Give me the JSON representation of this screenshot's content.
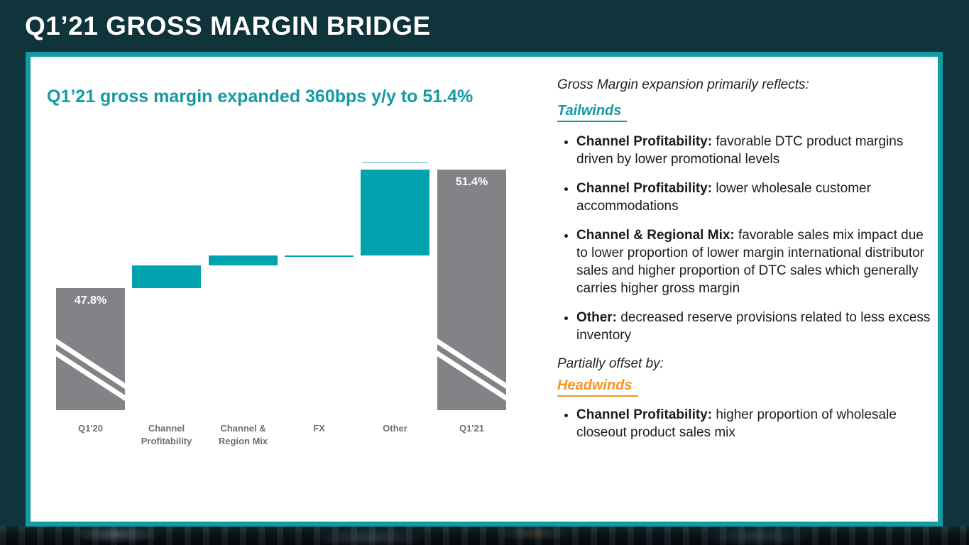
{
  "slide": {
    "title": "Q1’21 GROSS MARGIN BRIDGE"
  },
  "colors": {
    "accent_teal": "#149aa3",
    "bar_teal": "#00a3ad",
    "bar_gray": "#828387",
    "axis_label_gray": "#6d6e71",
    "headwinds_orange": "#f7941e",
    "data_label_white": "#ffffff",
    "ghost_line_teal": "#9fdbe0"
  },
  "chart_data": {
    "type": "waterfall",
    "title": "Q1’21 gross margin expanded 360bps y/y to 51.4%",
    "categories": [
      "Q1'20",
      "Channel Profitability",
      "Channel & Region Mix",
      "FX",
      "Other",
      "Q1'21"
    ],
    "bars": [
      {
        "category": "Q1'20",
        "kind": "total",
        "value": 47.8,
        "data_label": "47.8%",
        "axis_break": true
      },
      {
        "category": "Channel Profitability",
        "kind": "delta",
        "delta": 0.7
      },
      {
        "category": "Channel & Region Mix",
        "kind": "delta",
        "delta": 0.3
      },
      {
        "category": "FX",
        "kind": "delta",
        "delta": 0.0
      },
      {
        "category": "Other",
        "kind": "delta",
        "delta": 2.6,
        "ghost_line_above": true
      },
      {
        "category": "Q1'21",
        "kind": "total",
        "value": 51.4,
        "data_label": "51.4%",
        "axis_break": true
      }
    ],
    "start_value": 47.8,
    "end_value": 51.4,
    "axis_min": 44.1,
    "gridlines": false,
    "legend": false,
    "data_labels_on_totals_only": true
  },
  "right_panel": {
    "intro": "Gross Margin expansion primarily reflects:",
    "tailwinds_heading": "Tailwinds",
    "tailwind_bullets": [
      {
        "lead": "Channel Profitability:",
        "text": "favorable DTC product margins driven by lower promotional levels"
      },
      {
        "lead": "Channel Profitability:",
        "text": "lower wholesale customer accommodations"
      },
      {
        "lead": "Channel & Regional Mix:",
        "text": "favorable sales mix impact due to lower proportion of lower margin international distributor sales and higher proportion of DTC sales which generally carries higher gross margin"
      },
      {
        "lead": "Other:",
        "text": "decreased reserve provisions related to less excess inventory"
      }
    ],
    "offset_intro": "Partially offset by:",
    "headwinds_heading": "Headwinds",
    "headwind_bullets": [
      {
        "lead": "Channel Profitability:",
        "text": "higher proportion of wholesale closeout product sales mix"
      }
    ]
  }
}
